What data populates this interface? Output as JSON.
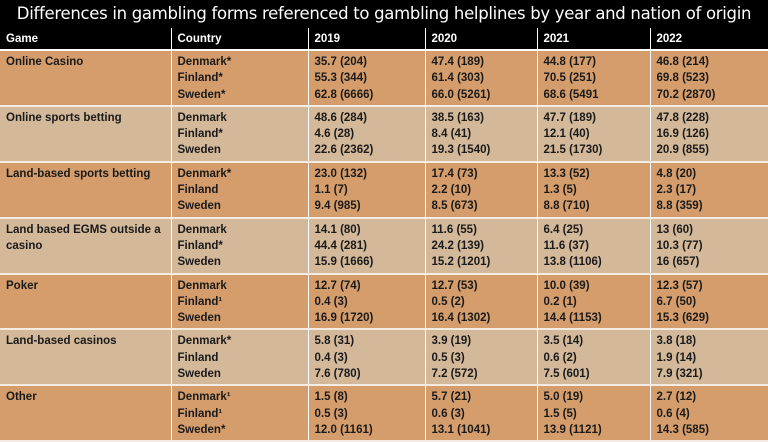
{
  "title": "Differences in gambling forms referenced to gambling helplines by year and nation of origin",
  "colors": {
    "header_bg": "#000000",
    "odd_row": "#d59d6c",
    "even_row": "#d3b899"
  },
  "headers": [
    "Game",
    "Country",
    "2019",
    "2020",
    "2021",
    "2022"
  ],
  "rows": [
    {
      "game": "Online Casino",
      "countries": [
        "Denmark*",
        "Finland*",
        "Sweden*"
      ],
      "y2019": [
        "35.7 (204)",
        "55.3 (344)",
        "62.8 (6666)"
      ],
      "y2020": [
        "47.4 (189)",
        "61.4 (303)",
        "66.0 (5261)"
      ],
      "y2021": [
        "44.8 (177)",
        "70.5 (251)",
        "68.6 (5491"
      ],
      "y2022": [
        "46.8 (214)",
        "69.8 (523)",
        "70.2 (2870)"
      ]
    },
    {
      "game": "Online sports betting",
      "countries": [
        "Denmark",
        "Finland*",
        "Sweden"
      ],
      "y2019": [
        "48.6 (284)",
        "4.6 (28)",
        "22.6 (2362)"
      ],
      "y2020": [
        "38.5 (163)",
        "8.4 (41)",
        "19.3 (1540)"
      ],
      "y2021": [
        "47.7 (189)",
        "12.1 (40)",
        "21.5 (1730)"
      ],
      "y2022": [
        "47.8 (228)",
        "16.9 (126)",
        "20.9 (855)"
      ]
    },
    {
      "game": "Land-based sports betting",
      "countries": [
        "Denmark*",
        "Finland",
        "Sweden"
      ],
      "y2019": [
        "23.0 (132)",
        "1.1 (7)",
        "9.4 (985)"
      ],
      "y2020": [
        "17.4 (73)",
        "2.2 (10)",
        "8.5 (673)"
      ],
      "y2021": [
        "13.3 (52)",
        "1.3 (5)",
        "8.8 (710)"
      ],
      "y2022": [
        "4.8 (20)",
        "2.3 (17)",
        "8.8 (359)"
      ]
    },
    {
      "game": "Land based EGMS outside a casino",
      "countries": [
        "Denmark",
        "Finland*",
        "Sweden"
      ],
      "y2019": [
        "14.1 (80)",
        "44.4 (281)",
        "15.9 (1666)"
      ],
      "y2020": [
        "11.6 (55)",
        "24.2 (139)",
        "15.2 (1201)"
      ],
      "y2021": [
        "6.4 (25)",
        "11.6 (37)",
        "13.8 (1106)"
      ],
      "y2022": [
        "13 (60)",
        "10.3 (77)",
        "16 (657)"
      ]
    },
    {
      "game": "Poker",
      "countries": [
        "Denmark",
        "Finland¹",
        "Sweden"
      ],
      "y2019": [
        "12.7 (74)",
        "0.4 (3)",
        "16.9 (1720)"
      ],
      "y2020": [
        "12.7 (53)",
        "0.5 (2)",
        "16.4 (1302)"
      ],
      "y2021": [
        "10.0 (39)",
        "0.2 (1)",
        "14.4 (1153)"
      ],
      "y2022": [
        "12.3 (57)",
        "6.7 (50)",
        "15.3 (629)"
      ]
    },
    {
      "game": "Land-based casinos",
      "countries": [
        "Denmark*",
        "Finland",
        "Sweden"
      ],
      "y2019": [
        "5.8 (31)",
        "0.4 (3)",
        "7.6 (780)"
      ],
      "y2020": [
        "3.9 (19)",
        "0.5 (3)",
        "7.2 (572)"
      ],
      "y2021": [
        "3.5 (14)",
        "0.6 (2)",
        "7.5 (601)"
      ],
      "y2022": [
        "3.8 (18)",
        "1.9 (14)",
        "7.9 (321)"
      ]
    },
    {
      "game": "Other",
      "countries": [
        "Denmark¹",
        "Finland¹",
        "Sweden*"
      ],
      "y2019": [
        "1.5 (8)",
        "0.5 (3)",
        "12.0 (1161)"
      ],
      "y2020": [
        "5.7 (21)",
        "0.6 (3)",
        "13.1 (1041)"
      ],
      "y2021": [
        "5.0 (19)",
        "1.5 (5)",
        "13.9 (1121)"
      ],
      "y2022": [
        "2.7 (12)",
        "0.6 (4)",
        "14.3 (585)"
      ]
    }
  ]
}
